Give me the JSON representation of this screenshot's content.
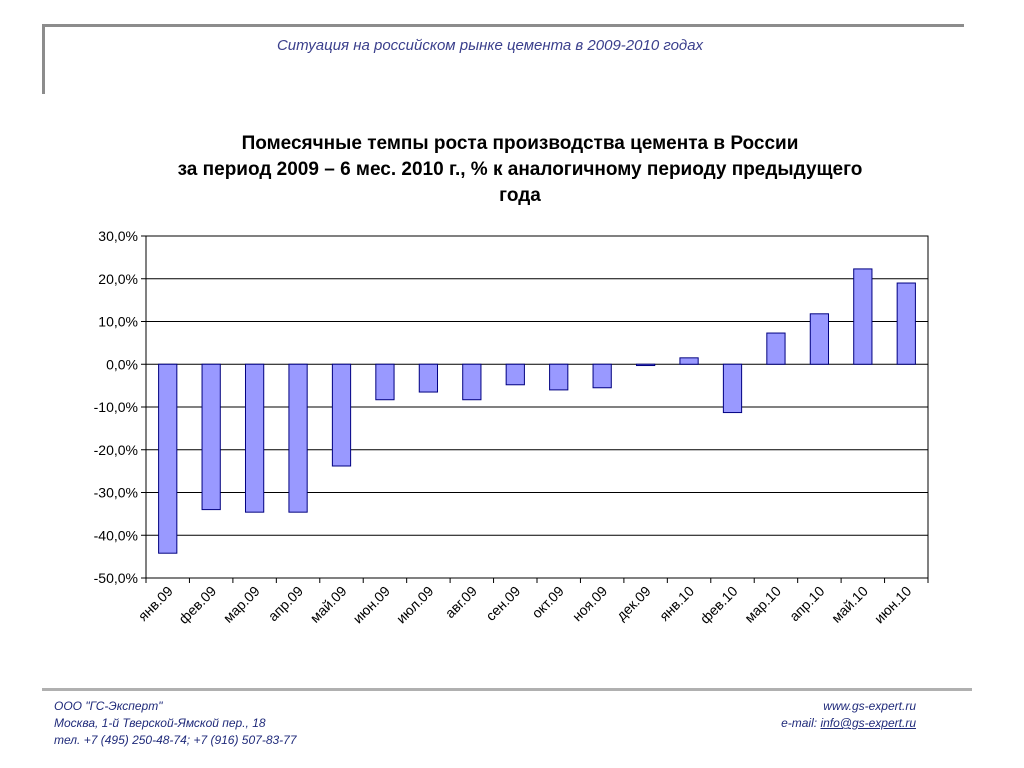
{
  "header": {
    "title": "Ситуация на российском рынке цемента в 2009-2010 годах"
  },
  "chart_data": {
    "type": "bar",
    "title_lines": [
      "Помесячные темпы роста производства цемента в России",
      "за период 2009 – 6 мес. 2010 г., % к аналогичному периоду предыдущего",
      "года"
    ],
    "categories": [
      "янв.09",
      "фев.09",
      "мар.09",
      "апр.09",
      "май.09",
      "июн.09",
      "июл.09",
      "авг.09",
      "сен.09",
      "окт.09",
      "ноя.09",
      "дек.09",
      "янв.10",
      "фев.10",
      "мар.10",
      "апр.10",
      "май.10",
      "июн.10"
    ],
    "values": [
      -44.2,
      -34.0,
      -34.6,
      -34.6,
      -23.8,
      -8.3,
      -6.5,
      -8.3,
      -4.8,
      -6.0,
      -5.5,
      -0.3,
      1.5,
      -11.3,
      7.3,
      11.8,
      22.3,
      19.0
    ],
    "y_ticks": [
      "30,0%",
      "20,0%",
      "10,0%",
      "0,0%",
      "-10,0%",
      "-20,0%",
      "-30,0%",
      "-40,0%",
      "-50,0%"
    ],
    "ylim": [
      -50,
      30
    ],
    "grid": true,
    "legend": "none",
    "bar_color": "#9999ff",
    "bar_outline": "#000080"
  },
  "footer": {
    "company": "ООО \"ГС-Эксперт\"",
    "address": "Москва, 1-й Тверской-Ямской пер., 18",
    "phone": "тел. +7 (495) 250-48-74; +7 (916) 507-83-77",
    "website": "www.gs-expert.ru",
    "email_label": "e-mail: ",
    "email": "info@gs-expert.ru"
  }
}
